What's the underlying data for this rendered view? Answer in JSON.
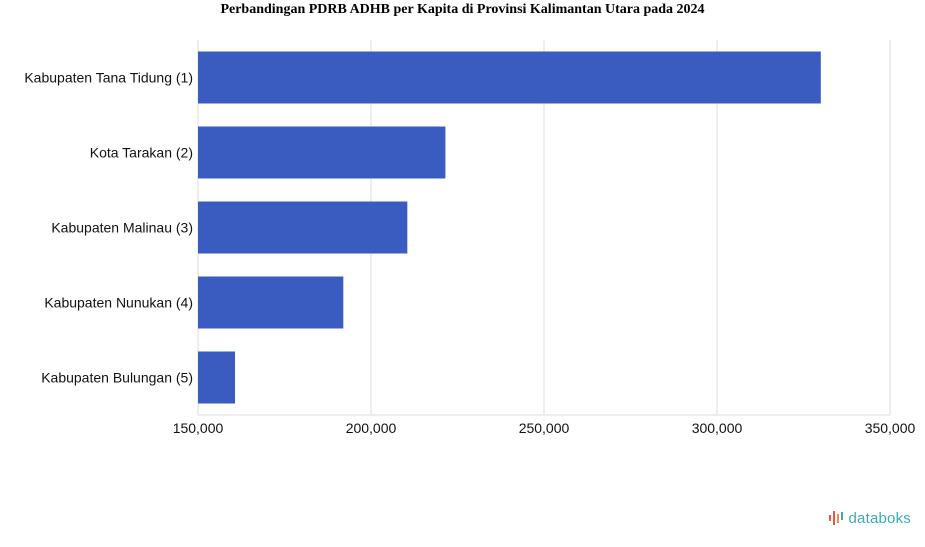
{
  "chart_data": {
    "type": "bar",
    "orientation": "horizontal",
    "title": "Perbandingan PDRB ADHB per Kapita di Provinsi Kalimantan Utara pada 2024",
    "categories": [
      "Kabupaten Tana Tidung (1)",
      "Kota Tarakan (2)",
      "Kabupaten Malinau (3)",
      "Kabupaten Nunukan (4)",
      "Kabupaten Bulungan (5)"
    ],
    "values": [
      330000,
      221500,
      210500,
      192000,
      160700
    ],
    "xlim": [
      150000,
      350000
    ],
    "xticks": [
      150000,
      200000,
      250000,
      300000,
      350000
    ],
    "xtick_labels": [
      "150,000",
      "200,000",
      "250,000",
      "300,000",
      "350,000"
    ],
    "xlabel": "",
    "ylabel": "",
    "grid": true,
    "legend": "none",
    "bar_color": "#3a5bbf"
  },
  "branding": {
    "logo_text": "databoks",
    "logo_icon": "databoks-bars-icon"
  }
}
